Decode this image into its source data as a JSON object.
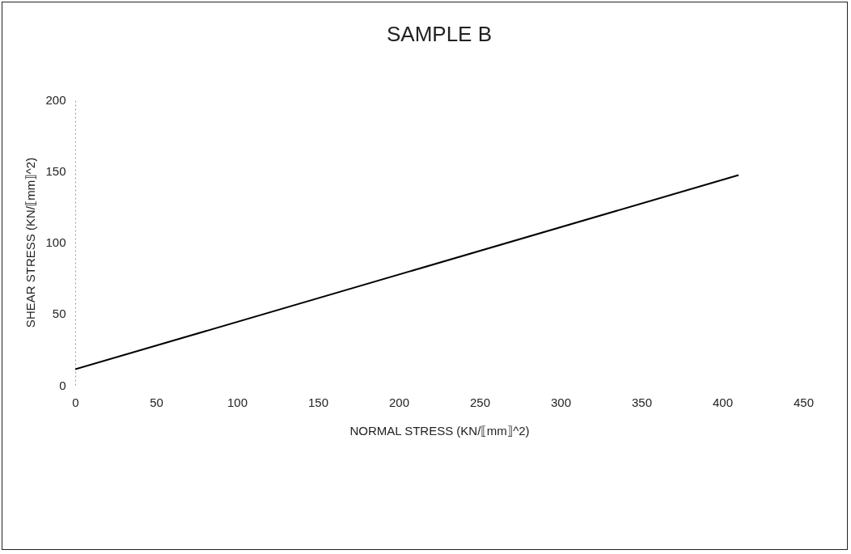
{
  "chart_data": {
    "type": "line",
    "title": "SAMPLE B",
    "xlabel": "NORMAL STRESS (KN/⟦mm⟧^2)",
    "ylabel": "SHEAR STRESS (KN/⟦mm⟧^2)",
    "x": [
      0,
      410
    ],
    "series": [
      {
        "color": "#000000",
        "values": [
          11,
          147
        ]
      }
    ],
    "xlim": [
      0,
      450
    ],
    "xticks": [
      0,
      50,
      100,
      150,
      200,
      250,
      300,
      350,
      400,
      450
    ],
    "ylim": [
      0,
      200
    ],
    "yticks": [
      0,
      50,
      100,
      150,
      200
    ],
    "grid": false,
    "legend": false,
    "marker": "none",
    "line_style": "solid"
  }
}
